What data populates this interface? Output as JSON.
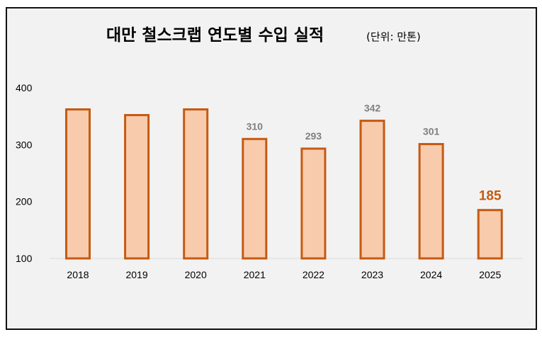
{
  "chart_data": {
    "type": "bar",
    "title": "대만 철스크랩 연도별 수입 실적",
    "unit": "(단위: 만톤)",
    "categories": [
      "2018",
      "2019",
      "2020",
      "2021",
      "2022",
      "2023",
      "2024",
      "2025"
    ],
    "values": [
      362,
      352,
      362,
      310,
      293,
      342,
      301,
      185
    ],
    "data_labels": [
      null,
      null,
      null,
      "310",
      "293",
      "342",
      "301",
      "185"
    ],
    "highlight_index": 7,
    "yticks": [
      "100",
      "200",
      "300",
      "400"
    ],
    "ylim": [
      100,
      400
    ],
    "xlabel": "",
    "ylabel": "",
    "grid": false,
    "colors": {
      "bar_fill": "#f8cbad",
      "bar_stroke": "#c55a11",
      "label": "#808080",
      "highlight": "#c55a11"
    }
  }
}
